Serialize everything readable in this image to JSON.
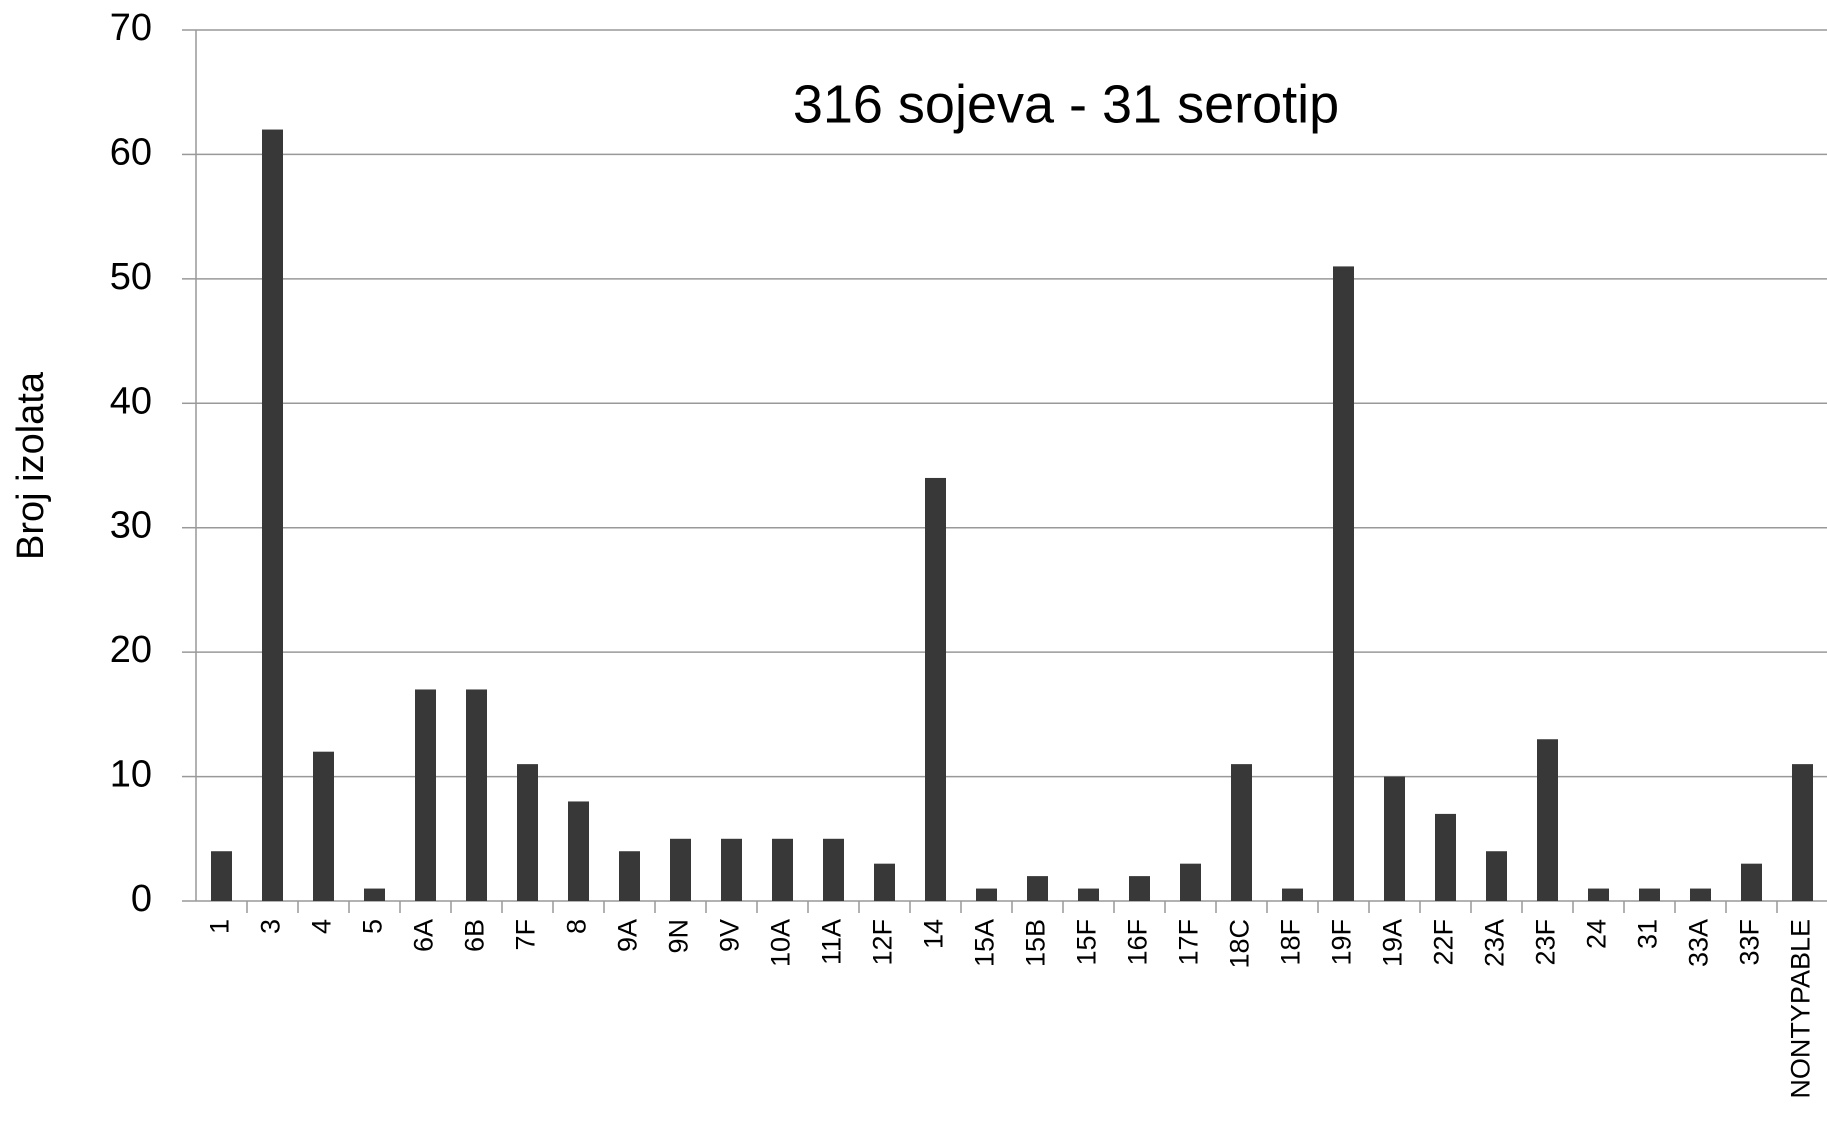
{
  "chart_data": {
    "type": "bar",
    "title": "316 sojeva - 31 serotip",
    "y_label": "Broj izolata",
    "categories": [
      "1",
      "3",
      "4",
      "5",
      "6A",
      "6B",
      "7F",
      "8",
      "9A",
      "9N",
      "9V",
      "10A",
      "11A",
      "12F",
      "14",
      "15A",
      "15B",
      "15F",
      "16F",
      "17F",
      "18C",
      "18F",
      "19F",
      "19A",
      "22F",
      "23A",
      "23F",
      "24",
      "31",
      "33A",
      "33F",
      "NONTYPABLE"
    ],
    "values": [
      4,
      62,
      12,
      1,
      17,
      17,
      11,
      8,
      4,
      5,
      5,
      5,
      5,
      3,
      34,
      1,
      2,
      1,
      2,
      3,
      11,
      1,
      51,
      10,
      7,
      4,
      13,
      1,
      1,
      1,
      3,
      11
    ],
    "color": "#383838",
    "ylim": [
      0,
      70
    ],
    "yticks": [
      0,
      10,
      20,
      30,
      40,
      50,
      60,
      70
    ],
    "grid": true
  }
}
